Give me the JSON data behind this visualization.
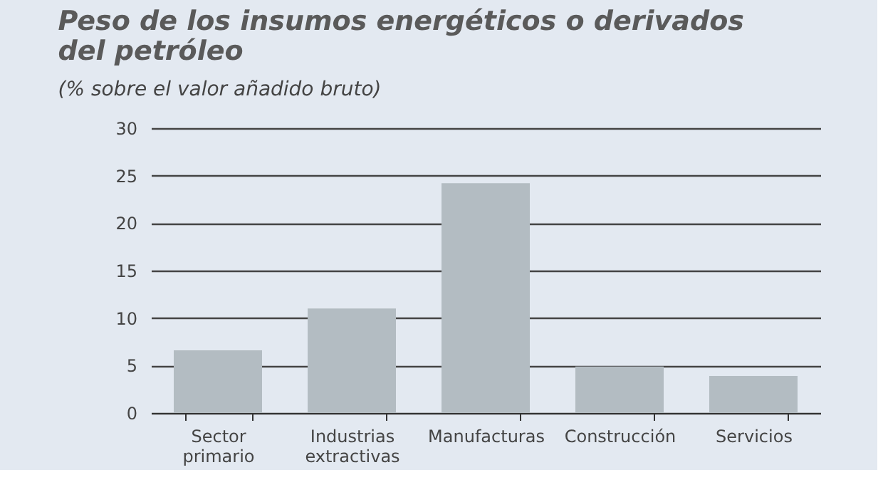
{
  "chart_data": {
    "type": "bar",
    "title": "Peso de los insumos energéticos o derivados del petróleo",
    "subtitle": "(% sobre el valor añadido bruto)",
    "categories": [
      "Sector primario",
      "Industrias extractivas",
      "Manufacturas",
      "Construcción",
      "Servicios"
    ],
    "values": [
      6.6,
      11.0,
      24.2,
      4.9,
      3.9
    ],
    "color": "#b3bcc2",
    "ylim": [
      0,
      30
    ],
    "yticks": [
      0,
      5,
      10,
      15,
      20,
      25,
      30
    ],
    "grid": "y"
  }
}
